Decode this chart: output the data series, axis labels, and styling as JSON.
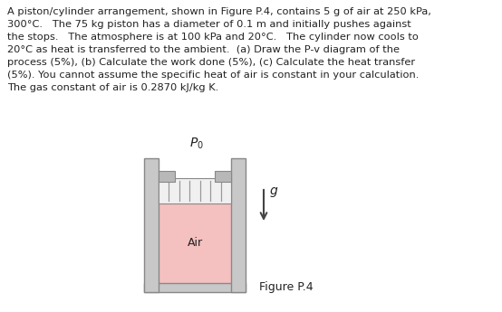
{
  "text_block": "A piston/cylinder arrangement, shown in Figure P.4, contains 5 g of air at 250 kPa,\n300°C.   The 75 kg piston has a diameter of 0.1 m and initially pushes against\nthe stops.   The atmosphere is at 100 kPa and 20°C.   The cylinder now cools to\n20°C as heat is transferred to the ambient.  (a) Draw the P-v diagram of the\nprocess (5%), (b) Calculate the work done (5%), (c) Calculate the heat transfer\n(5%). You cannot assume the specific heat of air is constant in your calculation.\nThe gas constant of air is 0.2870 kJ/kg K.",
  "figure_label": "Figure P.4",
  "p0_label": "$P_0$",
  "g_label": "$g$",
  "bg_color": "#ffffff",
  "wall_color": "#c8c8c8",
  "wall_edge_color": "#888888",
  "piston_fill_color": "#e8e8e8",
  "piston_line_color": "#aaaaaa",
  "air_color": "#f5c0c0",
  "stop_color": "#b8b8b8",
  "text_color": "#222222",
  "arrow_color": "#444444"
}
